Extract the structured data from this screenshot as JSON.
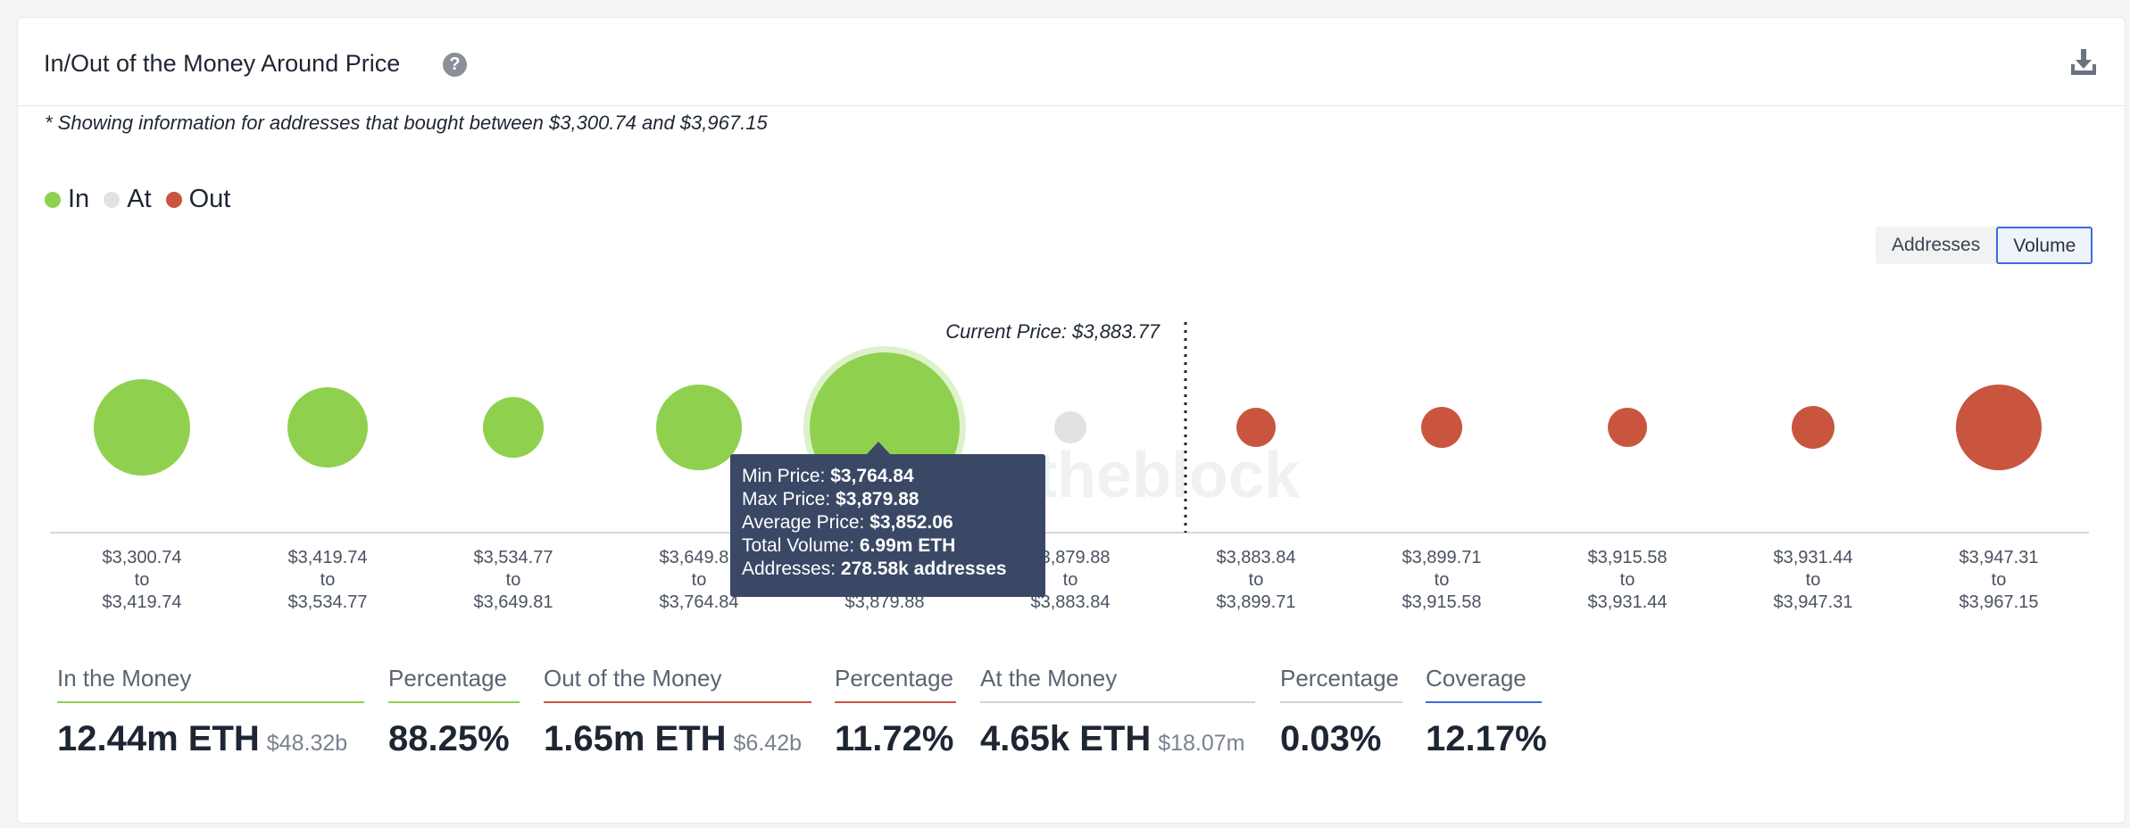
{
  "header": {
    "title": "In/Out of the Money Around Price",
    "help_icon": "question-circle-icon",
    "download_icon": "download-icon"
  },
  "note": "* Showing information for addresses that bought between $3,300.74 and $3,967.15",
  "legend": [
    {
      "label": "In",
      "color": "#8fd14f"
    },
    {
      "label": "At",
      "color": "#e2e2e2"
    },
    {
      "label": "Out",
      "color": "#c9553f"
    }
  ],
  "toggle": {
    "options": [
      "Addresses",
      "Volume"
    ],
    "active": "Volume"
  },
  "watermark": "theblock",
  "chart_data": {
    "type": "scatter",
    "metric": "Volume",
    "current_price": {
      "value": 3883.77,
      "label": "Current Price: $3,883.77"
    },
    "series": [
      {
        "name": "In",
        "color": "#8fd14f"
      },
      {
        "name": "At",
        "color": "#e2e2e2"
      },
      {
        "name": "Out",
        "color": "#c9553f"
      }
    ],
    "clusters": [
      {
        "from": "$3,300.74",
        "to": "$3,419.74",
        "status": "In",
        "radius": 54
      },
      {
        "from": "$3,419.74",
        "to": "$3,534.77",
        "status": "In",
        "radius": 45
      },
      {
        "from": "$3,534.77",
        "to": "$3,649.81",
        "status": "In",
        "radius": 34
      },
      {
        "from": "$3,649.81",
        "to": "$3,764.84",
        "status": "In",
        "radius": 48
      },
      {
        "from": "$3,764.84",
        "to": "$3,879.88",
        "status": "In",
        "radius": 84,
        "volume": "6.99m ETH",
        "highlighted": true
      },
      {
        "from": "$3,879.88",
        "to": "$3,883.84",
        "status": "At",
        "radius": 18
      },
      {
        "from": "$3,883.84",
        "to": "$3,899.71",
        "status": "Out",
        "radius": 22
      },
      {
        "from": "$3,899.71",
        "to": "$3,915.58",
        "status": "Out",
        "radius": 23
      },
      {
        "from": "$3,915.58",
        "to": "$3,931.44",
        "status": "Out",
        "radius": 22
      },
      {
        "from": "$3,931.44",
        "to": "$3,947.31",
        "status": "Out",
        "radius": 24
      },
      {
        "from": "$3,947.31",
        "to": "$3,967.15",
        "status": "Out",
        "radius": 48
      }
    ],
    "tick_connector": "to"
  },
  "tooltip": [
    {
      "label": "Min Price:",
      "value": "$3,764.84"
    },
    {
      "label": "Max Price:",
      "value": "$3,879.88"
    },
    {
      "label": "Average Price:",
      "value": "$3,852.06"
    },
    {
      "label": "Total Volume:",
      "value": "6.99m ETH"
    },
    {
      "label": "Addresses:",
      "value": "278.58k addresses"
    }
  ],
  "stats": [
    {
      "head": "In the Money",
      "main": "12.44m ETH",
      "sub": "$48.32b",
      "line_color": "#8fd14f"
    },
    {
      "head": "Percentage",
      "main": "88.25%",
      "sub": "",
      "line_color": "#8fd14f"
    },
    {
      "head": "Out of the Money",
      "main": "1.65m ETH",
      "sub": "$6.42b",
      "line_color": "#c9553f"
    },
    {
      "head": "Percentage",
      "main": "11.72%",
      "sub": "",
      "line_color": "#c9553f"
    },
    {
      "head": "At the Money",
      "main": "4.65k ETH",
      "sub": "$18.07m",
      "line_color": "#cfd3d9"
    },
    {
      "head": "Percentage",
      "main": "0.03%",
      "sub": "",
      "line_color": "#cfd3d9"
    },
    {
      "head": "Coverage",
      "main": "12.17%",
      "sub": "",
      "line_color": "#3d6bdc"
    }
  ]
}
